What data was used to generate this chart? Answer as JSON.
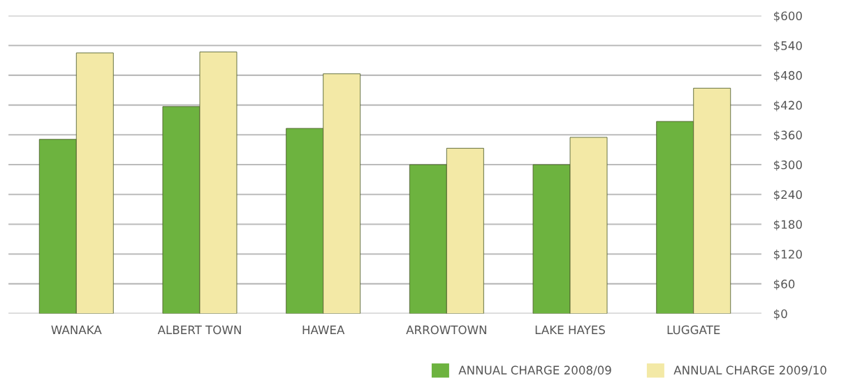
{
  "chart_data": {
    "type": "bar",
    "categories": [
      "WANAKA",
      "ALBERT TOWN",
      "HAWEA",
      "ARROWTOWN",
      "LAKE HAYES",
      "LUGGATE"
    ],
    "series": [
      {
        "name": "ANNUAL CHARGE 2008/09",
        "color": "#6db33f",
        "values": [
          351,
          417,
          373,
          300,
          300,
          387
        ]
      },
      {
        "name": "ANNUAL CHARGE 2009/10",
        "color": "#f3e9a6",
        "values": [
          525,
          527,
          483,
          333,
          355,
          454
        ]
      }
    ],
    "ylim": [
      0,
      600
    ],
    "yticks": [
      {
        "value": 0,
        "label": "$0"
      },
      {
        "value": 60,
        "label": "$60"
      },
      {
        "value": 120,
        "label": "$120"
      },
      {
        "value": 180,
        "label": "$180"
      },
      {
        "value": 240,
        "label": "$240"
      },
      {
        "value": 300,
        "label": "$300"
      },
      {
        "value": 360,
        "label": "$360"
      },
      {
        "value": 420,
        "label": "$420"
      },
      {
        "value": 480,
        "label": "$480"
      },
      {
        "value": 540,
        "label": "$540"
      },
      {
        "value": 600,
        "label": "$600"
      }
    ],
    "grid": "y",
    "legend": "bottom right"
  }
}
